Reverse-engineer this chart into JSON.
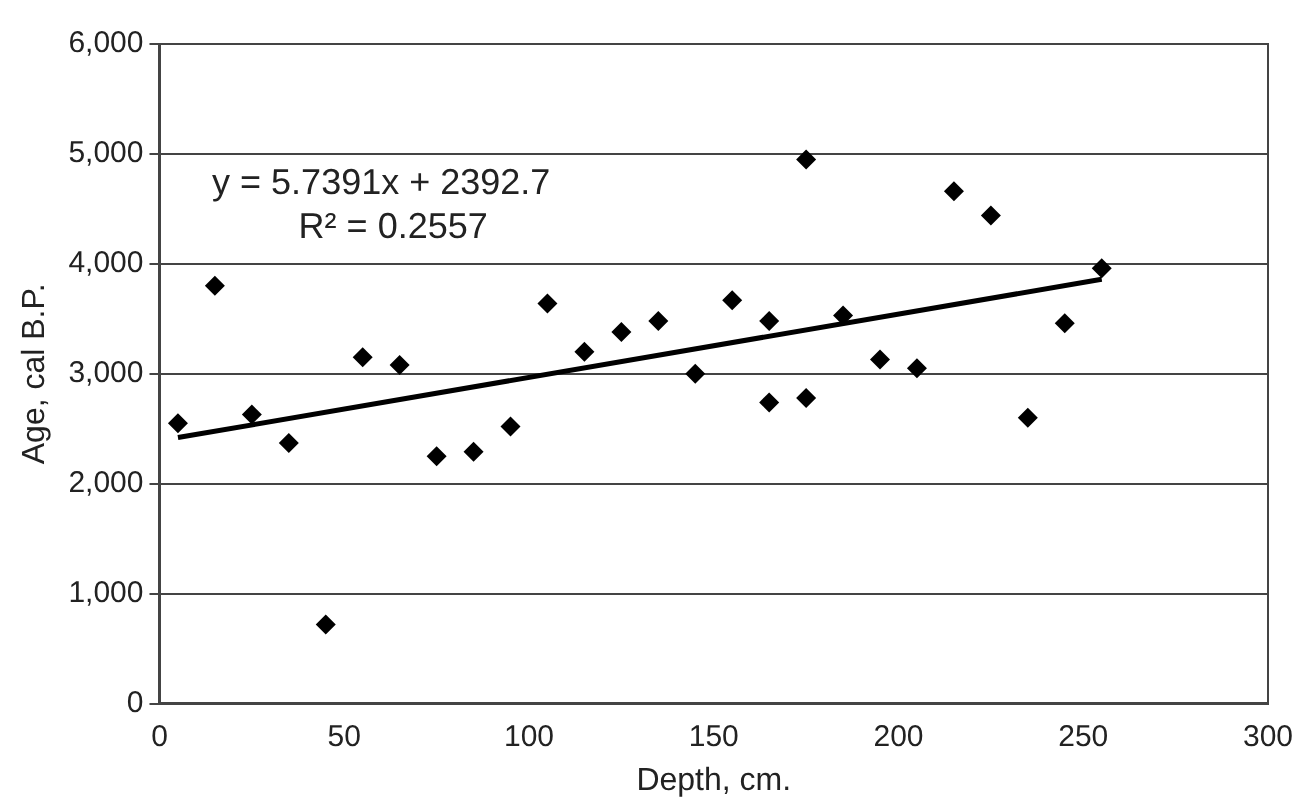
{
  "chart_data": {
    "type": "scatter",
    "xlabel": "Depth, cm.",
    "ylabel": "Age, cal B.P.",
    "xlim": [
      0,
      300
    ],
    "xticks": [
      0,
      50,
      100,
      150,
      200,
      250,
      300
    ],
    "ylim": [
      0,
      6000
    ],
    "yticks": [
      {
        "value": 0,
        "label": "0"
      },
      {
        "value": 1000,
        "label": "1,000"
      },
      {
        "value": 2000,
        "label": "2,000"
      },
      {
        "value": 3000,
        "label": "3,000"
      },
      {
        "value": 4000,
        "label": "4,000"
      },
      {
        "value": 5000,
        "label": "5,000"
      },
      {
        "value": 6000,
        "label": "6,000"
      }
    ],
    "grid": "y",
    "legend": false,
    "series": [
      {
        "color": "#000000",
        "marker": "diamond",
        "x": [
          5,
          15,
          25,
          35,
          45,
          55,
          65,
          75,
          85,
          95,
          105,
          115,
          125,
          135,
          145,
          155,
          165,
          165,
          175,
          175,
          185,
          195,
          205,
          215,
          225,
          235,
          245,
          255
        ],
        "values": [
          2550,
          3800,
          2630,
          2370,
          720,
          3150,
          3080,
          2250,
          2290,
          2520,
          3640,
          3200,
          3380,
          3480,
          3000,
          3670,
          3480,
          2740,
          4950,
          2780,
          3530,
          3130,
          3050,
          4660,
          4440,
          2600,
          3460,
          3960
        ]
      },
      {
        "type": "line",
        "color": "#000000",
        "marker": "none",
        "line_style": "solid",
        "x": [
          5,
          255
        ],
        "values": [
          2420,
          3860
        ]
      }
    ],
    "annotations": [
      "y = 5.7391x + 2392.7",
      "R² = 0.2557"
    ]
  }
}
